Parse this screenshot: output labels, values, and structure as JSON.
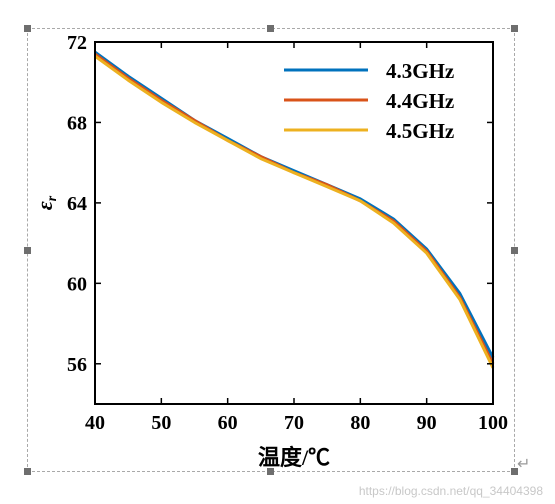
{
  "chart_data": {
    "type": "line",
    "title": "",
    "xlabel": "温度/℃",
    "ylabel": "εr",
    "ylabel_main": "ε",
    "ylabel_sub": "r",
    "xlim": [
      40,
      100
    ],
    "ylim": [
      54,
      72
    ],
    "xticks": [
      40,
      50,
      60,
      70,
      80,
      90,
      100
    ],
    "yticks": [
      56,
      60,
      64,
      68,
      72
    ],
    "grid": false,
    "legend_position": "top-right",
    "x": [
      40,
      45,
      50,
      55,
      60,
      65,
      70,
      75,
      80,
      85,
      90,
      95,
      100
    ],
    "series": [
      {
        "name": "4.3GHz",
        "color": "#0072BD",
        "values": [
          71.5,
          70.3,
          69.2,
          68.1,
          67.2,
          66.3,
          65.6,
          64.9,
          64.2,
          63.2,
          61.7,
          59.5,
          56.3
        ]
      },
      {
        "name": "4.4GHz",
        "color": "#D95319",
        "values": [
          71.4,
          70.2,
          69.1,
          68.1,
          67.1,
          66.3,
          65.5,
          64.9,
          64.1,
          63.1,
          61.6,
          59.3,
          56.0
        ]
      },
      {
        "name": "4.5GHz",
        "color": "#EDB120",
        "values": [
          71.3,
          70.1,
          69.0,
          68.0,
          67.1,
          66.2,
          65.5,
          64.8,
          64.1,
          63.0,
          61.5,
          59.2,
          55.8
        ]
      }
    ]
  },
  "watermark": "https://blog.csdn.net/qq_34404398",
  "return_icon": "↵"
}
